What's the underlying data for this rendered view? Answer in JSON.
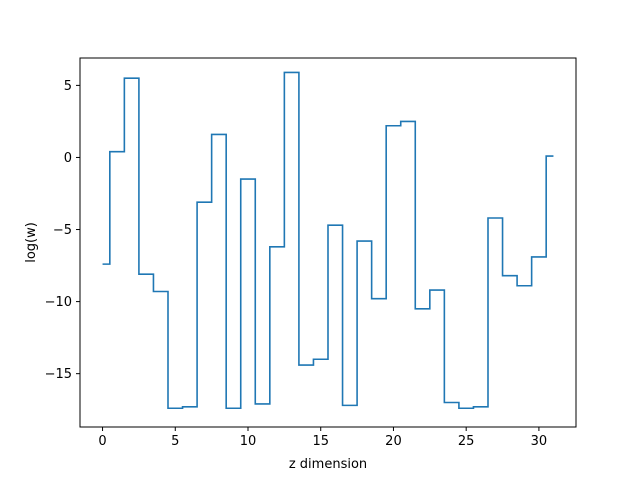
{
  "chart_data": {
    "type": "line",
    "drawstyle": "steps-mid",
    "title": "",
    "xlabel": "z dimension",
    "ylabel": "log(w)",
    "xlim": [
      -1.55,
      32.55
    ],
    "ylim": [
      -18.7,
      6.9
    ],
    "xticks": [
      0,
      5,
      10,
      15,
      20,
      25,
      30
    ],
    "xtick_labels": [
      "0",
      "5",
      "10",
      "15",
      "20",
      "25",
      "30"
    ],
    "yticks": [
      5,
      0,
      -5,
      -10,
      -15
    ],
    "ytick_labels": [
      "5",
      "0",
      "−5",
      "−10",
      "−15"
    ],
    "grid": false,
    "legend": "none",
    "series": [
      {
        "color": "#1f77b4",
        "x": [
          0,
          1,
          2,
          3,
          4,
          5,
          6,
          7,
          8,
          9,
          10,
          11,
          12,
          13,
          14,
          15,
          16,
          17,
          18,
          19,
          20,
          21,
          22,
          23,
          24,
          25,
          26,
          27,
          28,
          29,
          30,
          31
        ],
        "y": [
          -7.4,
          0.4,
          5.5,
          -8.1,
          -9.3,
          -17.4,
          -17.3,
          -3.1,
          1.6,
          -17.4,
          -1.5,
          -17.1,
          -6.2,
          5.9,
          -14.4,
          -14.0,
          -4.7,
          -17.2,
          -5.8,
          -9.8,
          2.2,
          2.5,
          -10.5,
          -9.2,
          -17.0,
          -17.4,
          -17.3,
          -4.2,
          -8.2,
          -8.9,
          -6.9,
          0.1
        ]
      }
    ]
  }
}
